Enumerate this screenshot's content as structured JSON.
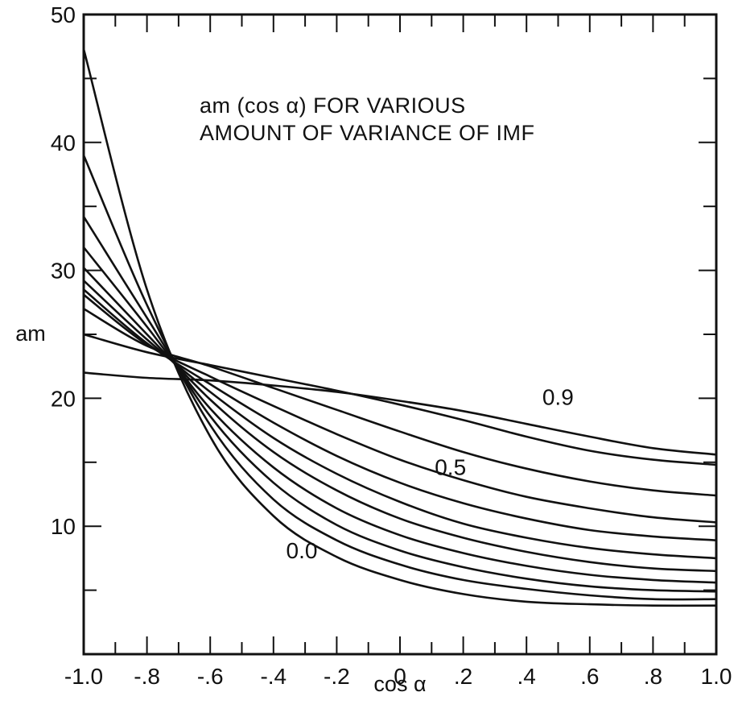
{
  "chart_data": {
    "type": "line",
    "title_line1": "am (cos α) FOR VARIOUS",
    "title_line2": "AMOUNT OF VARIANCE OF IMF",
    "xlabel": "cos α",
    "ylabel": "am",
    "xlim": [
      -1.0,
      1.0
    ],
    "ylim": [
      0,
      50
    ],
    "x_ticks": [
      -1.0,
      -0.8,
      -0.6,
      -0.4,
      -0.2,
      0,
      0.2,
      0.4,
      0.6,
      0.8,
      1.0
    ],
    "x_tick_labels": [
      "-1.0",
      "-.8",
      "-.6",
      "-.4",
      "-.2",
      "0",
      ".2",
      ".4",
      ".6",
      ".8",
      "1.0"
    ],
    "y_ticks": [
      10,
      20,
      30,
      40,
      50
    ],
    "y_tick_labels": [
      "10",
      "20",
      "30",
      "40",
      "50"
    ],
    "grid": false,
    "curve_labels": [
      {
        "text": "0.9",
        "x": 0.45,
        "y": 19.5
      },
      {
        "text": "0.5",
        "x": 0.11,
        "y": 14.0
      },
      {
        "text": "0.0",
        "x": -0.36,
        "y": 7.5
      }
    ],
    "x": [
      -1.0,
      -0.8,
      -0.6,
      -0.4,
      -0.2,
      0.0,
      0.2,
      0.4,
      0.6,
      0.8,
      1.0
    ],
    "series": [
      {
        "values": [
          47.3,
          28.5,
          17.0,
          10.8,
          7.6,
          5.8,
          4.7,
          4.1,
          3.9,
          3.8,
          3.8
        ]
      },
      {
        "values": [
          39.0,
          27.3,
          17.9,
          12.1,
          8.9,
          7.0,
          5.8,
          5.1,
          4.6,
          4.3,
          4.3
        ]
      },
      {
        "values": [
          34.2,
          26.3,
          18.6,
          13.4,
          10.1,
          8.1,
          6.8,
          5.9,
          5.3,
          5.0,
          4.9
        ]
      },
      {
        "values": [
          31.8,
          25.6,
          19.2,
          14.6,
          11.4,
          9.3,
          7.9,
          6.9,
          6.2,
          5.8,
          5.6
        ]
      },
      {
        "values": [
          30.2,
          25.0,
          19.9,
          15.8,
          12.8,
          10.6,
          9.1,
          8.0,
          7.2,
          6.7,
          6.5
        ]
      },
      {
        "values": [
          29.2,
          24.6,
          20.5,
          16.9,
          14.1,
          11.9,
          10.2,
          9.1,
          8.3,
          7.8,
          7.5
        ]
      },
      {
        "values": [
          28.5,
          24.3,
          21.1,
          18.1,
          15.5,
          13.4,
          11.8,
          10.6,
          9.7,
          9.2,
          8.9
        ]
      },
      {
        "values": [
          28.1,
          24.2,
          21.7,
          19.4,
          17.2,
          15.2,
          13.6,
          12.3,
          11.4,
          10.7,
          10.3
        ]
      },
      {
        "values": [
          27.0,
          24.1,
          22.5,
          20.8,
          19.1,
          17.4,
          15.8,
          14.5,
          13.5,
          12.8,
          12.4
        ]
      },
      {
        "values": [
          25.0,
          23.6,
          22.6,
          21.6,
          20.6,
          19.5,
          18.3,
          17.0,
          15.9,
          15.2,
          14.8
        ]
      },
      {
        "values": [
          22.0,
          21.6,
          21.4,
          21.0,
          20.5,
          19.8,
          19.0,
          18.0,
          17.0,
          16.1,
          15.6
        ]
      }
    ]
  }
}
